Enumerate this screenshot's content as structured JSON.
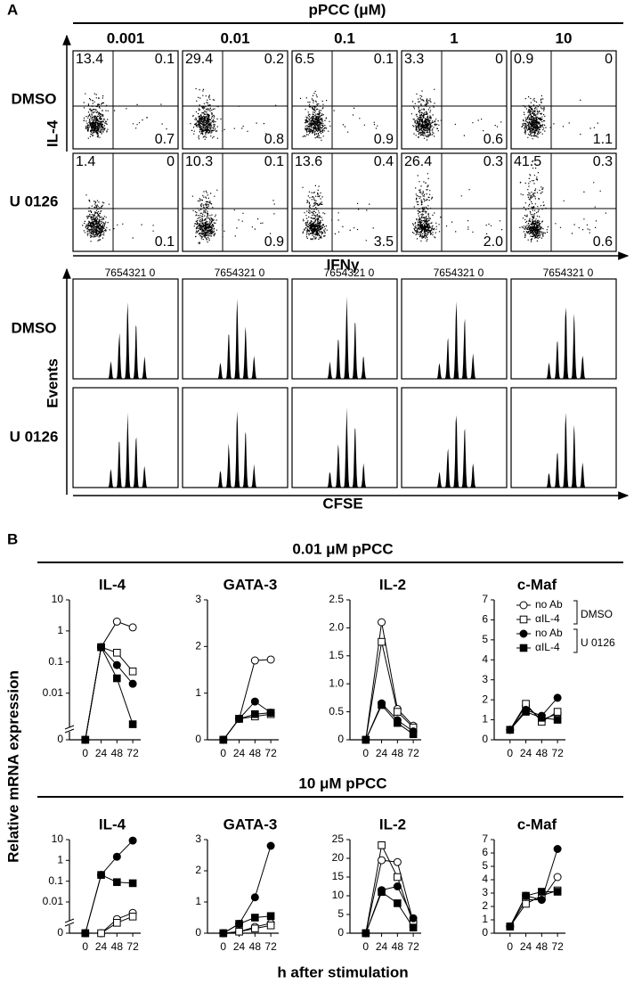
{
  "panel_a": {
    "label": "A",
    "header": "pPCC (μM)",
    "concentrations": [
      "0.001",
      "0.01",
      "0.1",
      "1",
      "10"
    ],
    "rows": [
      "DMSO",
      "U 0126"
    ],
    "dot_y_label": "IL-4",
    "dot_x_label": "IFNγ",
    "hist_y_label": "Events",
    "hist_x_label": "CFSE",
    "division_label": "7654321 0",
    "quadrants": [
      [
        [
          "13.4",
          "0.1",
          "0.7"
        ],
        [
          "29.4",
          "0.2",
          "0.8"
        ],
        [
          "6.5",
          "0.1",
          "0.9"
        ],
        [
          "3.3",
          "0",
          "0.6"
        ],
        [
          "0.9",
          "0",
          "1.1"
        ]
      ],
      [
        [
          "1.4",
          "0",
          "0.1"
        ],
        [
          "10.3",
          "0.1",
          "0.9"
        ],
        [
          "13.6",
          "0.4",
          "3.5"
        ],
        [
          "26.4",
          "0.3",
          "2.0"
        ],
        [
          "41.5",
          "0.3",
          "0.6"
        ]
      ]
    ]
  },
  "panel_b": {
    "label": "B",
    "groups": [
      "0.01 μM pPCC",
      "10 μM pPCC"
    ],
    "y_label": "Relative mRNA expression",
    "x_label": "h after stimulation"
  },
  "chart_data": [
    {
      "type": "line",
      "title": "IL-4",
      "x": [
        0,
        24,
        48,
        72
      ],
      "xlim": [
        -24,
        84
      ],
      "xticks": [
        0,
        24,
        48,
        72
      ],
      "ylim": [
        0,
        10
      ],
      "yticks": [
        0,
        0.01,
        0.1,
        1,
        10
      ],
      "log": true,
      "series": [
        {
          "marker": "circle-open",
          "color": "#000000",
          "values": [
            0,
            0.3,
            2,
            1.3
          ]
        },
        {
          "marker": "square-open",
          "color": "#000000",
          "values": [
            0,
            0.3,
            0.2,
            0.05
          ]
        },
        {
          "marker": "circle-filled",
          "color": "#000000",
          "values": [
            0,
            0.3,
            0.08,
            0.02
          ]
        },
        {
          "marker": "square-filled",
          "color": "#000000",
          "values": [
            0,
            0.3,
            0.03,
            0.001
          ]
        }
      ]
    },
    {
      "type": "line",
      "title": "GATA-3",
      "x": [
        0,
        24,
        48,
        72
      ],
      "xlim": [
        -24,
        84
      ],
      "xticks": [
        0,
        24,
        48,
        72
      ],
      "ylim": [
        0,
        3
      ],
      "yticks": [
        0,
        1,
        2,
        3
      ],
      "series": [
        {
          "marker": "circle-open",
          "color": "#000000",
          "values": [
            0,
            0.45,
            1.7,
            1.72
          ]
        },
        {
          "marker": "square-open",
          "color": "#000000",
          "values": [
            0,
            0.45,
            0.5,
            0.55
          ]
        },
        {
          "marker": "circle-filled",
          "color": "#000000",
          "values": [
            0,
            0.45,
            0.82,
            0.58
          ]
        },
        {
          "marker": "square-filled",
          "color": "#000000",
          "values": [
            0,
            0.45,
            0.55,
            0.58
          ]
        }
      ]
    },
    {
      "type": "line",
      "title": "IL-2",
      "x": [
        0,
        24,
        48,
        72
      ],
      "xlim": [
        -24,
        84
      ],
      "xticks": [
        0,
        24,
        48,
        72
      ],
      "ylim": [
        0,
        2.5
      ],
      "yticks": [
        0,
        0.5,
        {
          "value": 1,
          "label": "1.0"
        },
        1.5,
        {
          "value": 2,
          "label": "2.0"
        },
        2.5
      ],
      "series": [
        {
          "marker": "circle-open",
          "color": "#000000",
          "values": [
            0,
            2.1,
            0.55,
            0.25
          ]
        },
        {
          "marker": "square-open",
          "color": "#000000",
          "values": [
            0,
            1.75,
            0.5,
            0.22
          ]
        },
        {
          "marker": "circle-filled",
          "color": "#000000",
          "values": [
            0,
            0.65,
            0.35,
            0.15
          ]
        },
        {
          "marker": "square-filled",
          "color": "#000000",
          "values": [
            0,
            0.62,
            0.3,
            0.1
          ]
        }
      ]
    },
    {
      "type": "line",
      "title": "c-Maf",
      "x": [
        0,
        24,
        48,
        72
      ],
      "xlim": [
        -24,
        84
      ],
      "xticks": [
        0,
        24,
        48,
        72
      ],
      "ylim": [
        0,
        7
      ],
      "yticks": [
        0,
        1,
        2,
        3,
        4,
        5,
        6,
        7
      ],
      "legend_groups": [
        "DMSO",
        "U 0126"
      ],
      "series": [
        {
          "name": "no Ab",
          "marker": "circle-open",
          "color": "#000000",
          "values": [
            0.5,
            1.7,
            1.0,
            1.3
          ]
        },
        {
          "name": "αIL-4",
          "marker": "square-open",
          "color": "#000000",
          "values": [
            0.5,
            1.8,
            0.9,
            1.4
          ]
        },
        {
          "name": "no Ab",
          "marker": "circle-filled",
          "color": "#000000",
          "values": [
            0.5,
            1.5,
            1.2,
            2.1
          ]
        },
        {
          "name": "αIL-4",
          "marker": "square-filled",
          "color": "#000000",
          "values": [
            0.5,
            1.4,
            1.1,
            1.0
          ]
        }
      ]
    },
    {
      "type": "line",
      "title": "IL-4",
      "x": [
        0,
        24,
        48,
        72
      ],
      "xlim": [
        -24,
        84
      ],
      "xticks": [
        0,
        24,
        48,
        72
      ],
      "ylim": [
        0,
        10
      ],
      "yticks": [
        0,
        0.01,
        0.1,
        1,
        10
      ],
      "log": true,
      "series": [
        {
          "marker": "circle-open",
          "color": "#000000",
          "values": [
            0,
            0,
            0.0015,
            0.003
          ]
        },
        {
          "marker": "square-open",
          "color": "#000000",
          "values": [
            0,
            0,
            0.001,
            0.002
          ]
        },
        {
          "marker": "circle-filled",
          "color": "#000000",
          "values": [
            0,
            0.2,
            1.5,
            9
          ]
        },
        {
          "marker": "square-filled",
          "color": "#000000",
          "values": [
            0,
            0.2,
            0.09,
            0.08
          ]
        }
      ]
    },
    {
      "type": "line",
      "title": "GATA-3",
      "x": [
        0,
        24,
        48,
        72
      ],
      "xlim": [
        -24,
        84
      ],
      "xticks": [
        0,
        24,
        48,
        72
      ],
      "ylim": [
        0,
        3
      ],
      "yticks": [
        0,
        1,
        2,
        3
      ],
      "series": [
        {
          "marker": "circle-open",
          "color": "#000000",
          "values": [
            0,
            0.05,
            0.2,
            0.32
          ]
        },
        {
          "marker": "square-open",
          "color": "#000000",
          "values": [
            0,
            0.05,
            0.15,
            0.25
          ]
        },
        {
          "marker": "circle-filled",
          "color": "#000000",
          "values": [
            0,
            0.3,
            1.15,
            2.8
          ]
        },
        {
          "marker": "square-filled",
          "color": "#000000",
          "values": [
            0,
            0.3,
            0.5,
            0.55
          ]
        }
      ]
    },
    {
      "type": "line",
      "title": "IL-2",
      "x": [
        0,
        24,
        48,
        72
      ],
      "xlim": [
        -24,
        84
      ],
      "xticks": [
        0,
        24,
        48,
        72
      ],
      "ylim": [
        0,
        25
      ],
      "yticks": [
        0,
        5,
        10,
        15,
        20,
        25
      ],
      "series": [
        {
          "marker": "circle-open",
          "color": "#000000",
          "values": [
            0,
            19.5,
            19,
            3
          ]
        },
        {
          "marker": "square-open",
          "color": "#000000",
          "values": [
            0,
            23.5,
            15,
            2.5
          ]
        },
        {
          "marker": "circle-filled",
          "color": "#000000",
          "values": [
            0,
            11.5,
            12.5,
            4
          ]
        },
        {
          "marker": "square-filled",
          "color": "#000000",
          "values": [
            0,
            11,
            8,
            1.5
          ]
        }
      ]
    },
    {
      "type": "line",
      "title": "c-Maf",
      "x": [
        0,
        24,
        48,
        72
      ],
      "xlim": [
        -24,
        84
      ],
      "xticks": [
        0,
        24,
        48,
        72
      ],
      "ylim": [
        0,
        7
      ],
      "yticks": [
        0,
        1,
        2,
        3,
        4,
        5,
        6,
        7
      ],
      "series": [
        {
          "marker": "circle-open",
          "color": "#000000",
          "values": [
            0.5,
            2.5,
            2.5,
            4.2
          ]
        },
        {
          "marker": "square-open",
          "color": "#000000",
          "values": [
            0.5,
            2.2,
            2.8,
            3.2
          ]
        },
        {
          "marker": "circle-filled",
          "color": "#000000",
          "values": [
            0.5,
            2.8,
            2.5,
            6.3
          ]
        },
        {
          "marker": "square-filled",
          "color": "#000000",
          "values": [
            0.5,
            2.8,
            3.1,
            3.1
          ]
        }
      ]
    }
  ]
}
